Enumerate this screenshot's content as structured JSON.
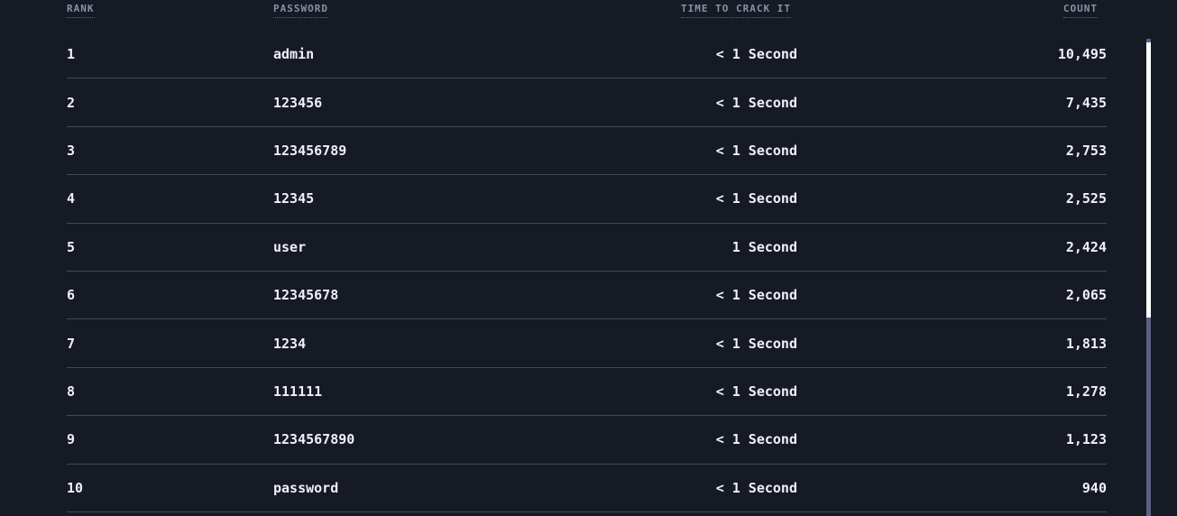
{
  "page": {
    "background_color": "#161A25",
    "body_text_color": "#EFF1F4",
    "header_text_color": "#8A91A3",
    "divider_color": "#424856"
  },
  "table": {
    "headers": [
      {
        "id": "rank",
        "label": "RANK"
      },
      {
        "id": "password",
        "label": "PASSWORD"
      },
      {
        "id": "time_to_crack",
        "label": "TIME TO CRACK IT"
      },
      {
        "id": "count",
        "label": "COUNT"
      }
    ],
    "rows": [
      {
        "rank": "1",
        "password": "admin",
        "time_to_crack": "< 1 Second",
        "count": "10,495"
      },
      {
        "rank": "2",
        "password": "123456",
        "time_to_crack": "< 1 Second",
        "count": "7,435"
      },
      {
        "rank": "3",
        "password": "123456789",
        "time_to_crack": "< 1 Second",
        "count": "2,753"
      },
      {
        "rank": "4",
        "password": "12345",
        "time_to_crack": "< 1 Second",
        "count": "2,525"
      },
      {
        "rank": "5",
        "password": "user",
        "time_to_crack": "1 Second",
        "count": "2,424"
      },
      {
        "rank": "6",
        "password": "12345678",
        "time_to_crack": "< 1 Second",
        "count": "2,065"
      },
      {
        "rank": "7",
        "password": "1234",
        "time_to_crack": "< 1 Second",
        "count": "1,813"
      },
      {
        "rank": "8",
        "password": "111111",
        "time_to_crack": "< 1 Second",
        "count": "1,278"
      },
      {
        "rank": "9",
        "password": "1234567890",
        "time_to_crack": "< 1 Second",
        "count": "1,123"
      },
      {
        "rank": "10",
        "password": "password",
        "time_to_crack": "< 1 Second",
        "count": "940"
      }
    ]
  },
  "scrollbar": {
    "thumb_color": "#FFFFFF",
    "track_color": "#5C6083"
  }
}
